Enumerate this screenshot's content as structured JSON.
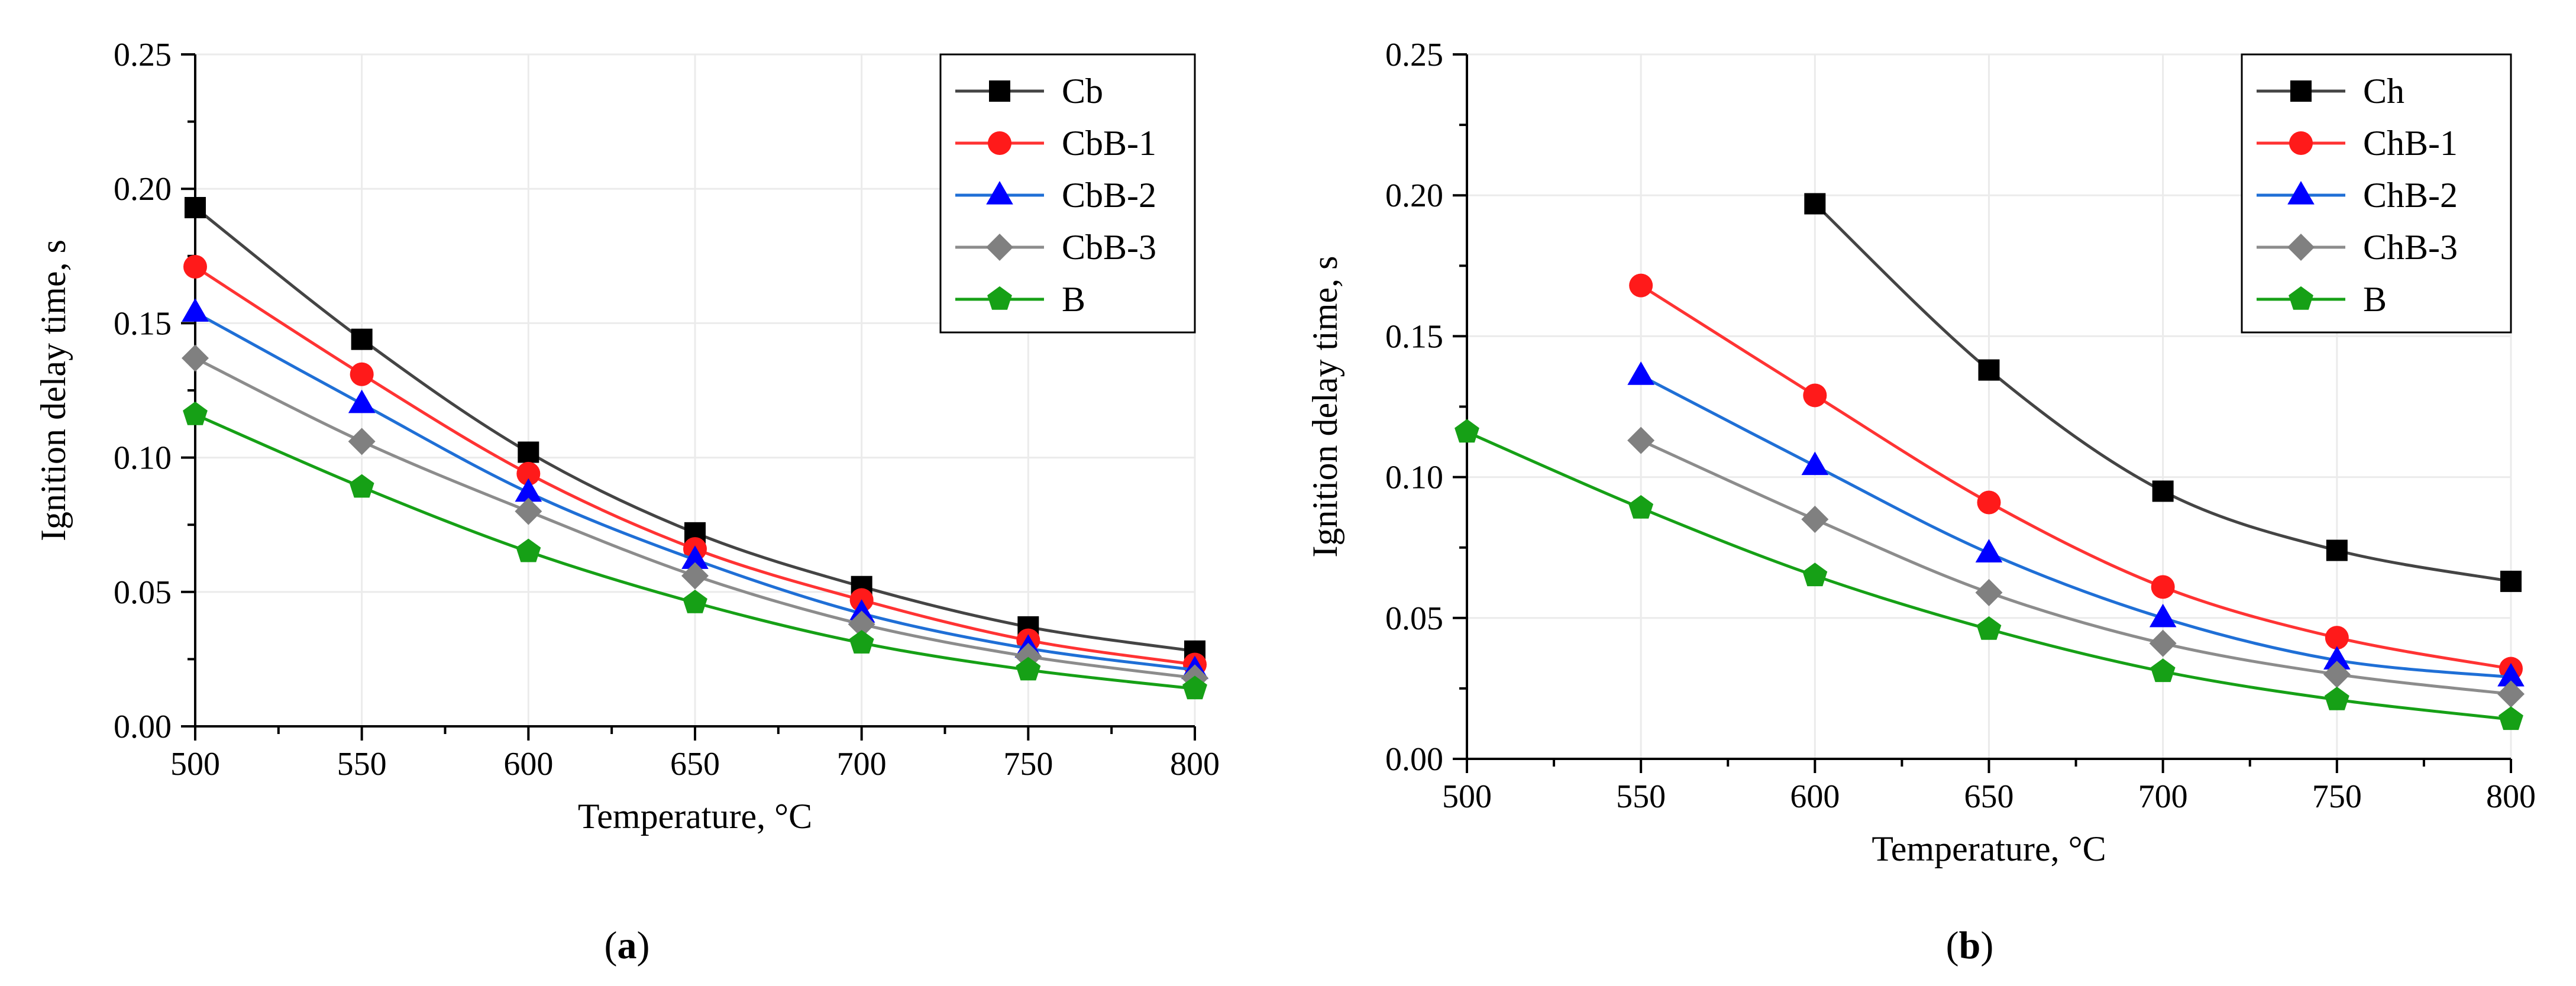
{
  "chart_data": [
    {
      "type": "line",
      "title": "",
      "xlabel": "Temperature, °C",
      "ylabel": "Ignition delay time, s",
      "xlim": [
        500,
        800
      ],
      "ylim": [
        0.0,
        0.25
      ],
      "xticks": [
        "500",
        "550",
        "600",
        "650",
        "700",
        "750",
        "800"
      ],
      "yticks": [
        "0.00",
        "0.05",
        "0.10",
        "0.15",
        "0.20",
        "0.25"
      ],
      "grid": true,
      "legend_position": "top-right",
      "caption_open": "(",
      "caption_letter": "a",
      "caption_close": ")",
      "series": [
        {
          "name": "Cb",
          "color": "#000000",
          "line_color": "#444444",
          "marker": "square",
          "x": [
            500,
            550,
            600,
            650,
            700,
            750,
            800
          ],
          "values": [
            0.193,
            0.144,
            0.102,
            0.072,
            0.052,
            0.037,
            0.028
          ]
        },
        {
          "name": "CbB-1",
          "color": "#ff1a1a",
          "line_color": "#ff3333",
          "marker": "circle",
          "x": [
            500,
            550,
            600,
            650,
            700,
            750,
            800
          ],
          "values": [
            0.171,
            0.131,
            0.094,
            0.066,
            0.047,
            0.032,
            0.023
          ]
        },
        {
          "name": "CbB-2",
          "color": "#0000ff",
          "line_color": "#1f6fd6",
          "marker": "triangle",
          "x": [
            500,
            550,
            600,
            650,
            700,
            750,
            800
          ],
          "values": [
            0.154,
            0.12,
            0.087,
            0.062,
            0.042,
            0.029,
            0.021
          ]
        },
        {
          "name": "CbB-3",
          "color": "#808080",
          "line_color": "#8c8c8c",
          "marker": "diamond",
          "x": [
            500,
            550,
            600,
            650,
            700,
            750,
            800
          ],
          "values": [
            0.137,
            0.106,
            0.08,
            0.056,
            0.038,
            0.026,
            0.018
          ]
        },
        {
          "name": "B",
          "color": "#16a016",
          "line_color": "#16a016",
          "marker": "pentagon",
          "x": [
            500,
            550,
            600,
            650,
            700,
            750,
            800
          ],
          "values": [
            0.116,
            0.089,
            0.065,
            0.046,
            0.031,
            0.021,
            0.014
          ]
        }
      ]
    },
    {
      "type": "line",
      "title": "",
      "xlabel": "Temperature, °C",
      "ylabel": "Ignition delay time, s",
      "xlim": [
        500,
        800
      ],
      "ylim": [
        0.0,
        0.25
      ],
      "xticks": [
        "500",
        "550",
        "600",
        "650",
        "700",
        "750",
        "800"
      ],
      "yticks": [
        "0.00",
        "0.05",
        "0.10",
        "0.15",
        "0.20",
        "0.25"
      ],
      "grid": true,
      "legend_position": "top-right",
      "caption_open": "(",
      "caption_letter": "b",
      "caption_close": ")",
      "series": [
        {
          "name": "Ch",
          "color": "#000000",
          "line_color": "#444444",
          "marker": "square",
          "x": [
            600,
            650,
            700,
            750,
            800
          ],
          "values": [
            0.197,
            0.138,
            0.095,
            0.074,
            0.063
          ]
        },
        {
          "name": "ChB-1",
          "color": "#ff1a1a",
          "line_color": "#ff3333",
          "marker": "circle",
          "x": [
            550,
            600,
            650,
            700,
            750,
            800
          ],
          "values": [
            0.168,
            0.129,
            0.091,
            0.061,
            0.043,
            0.032
          ]
        },
        {
          "name": "ChB-2",
          "color": "#0000ff",
          "line_color": "#1f6fd6",
          "marker": "triangle",
          "x": [
            550,
            600,
            650,
            700,
            750,
            800
          ],
          "values": [
            0.136,
            0.104,
            0.073,
            0.05,
            0.035,
            0.029
          ]
        },
        {
          "name": "ChB-3",
          "color": "#808080",
          "line_color": "#8c8c8c",
          "marker": "diamond",
          "x": [
            550,
            600,
            650,
            700,
            750,
            800
          ],
          "values": [
            0.113,
            0.085,
            0.059,
            0.041,
            0.03,
            0.023
          ]
        },
        {
          "name": "B",
          "color": "#16a016",
          "line_color": "#16a016",
          "marker": "pentagon",
          "x": [
            500,
            550,
            600,
            650,
            700,
            750,
            800
          ],
          "values": [
            0.116,
            0.089,
            0.065,
            0.046,
            0.031,
            0.021,
            0.014
          ]
        }
      ]
    }
  ]
}
